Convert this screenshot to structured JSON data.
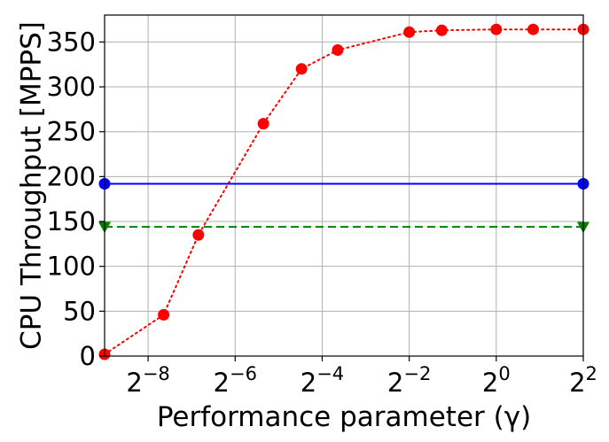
{
  "chart_data": {
    "type": "line",
    "xlabel": "Performance parameter (γ)",
    "ylabel": "CPU Throughput [MPPS]",
    "x_scale": "log2",
    "xlim": [
      0.001953125,
      4
    ],
    "ylim": [
      0,
      380
    ],
    "grid": true,
    "x_ticks": [
      {
        "value": 0.00390625,
        "base": "2",
        "exp": "−8"
      },
      {
        "value": 0.015625,
        "base": "2",
        "exp": "−6"
      },
      {
        "value": 0.0625,
        "base": "2",
        "exp": "−4"
      },
      {
        "value": 0.25,
        "base": "2",
        "exp": "−2"
      },
      {
        "value": 1,
        "base": "2",
        "exp": "0"
      },
      {
        "value": 4,
        "base": "2",
        "exp": "2"
      }
    ],
    "y_ticks": [
      0,
      50,
      100,
      150,
      200,
      250,
      300,
      350
    ],
    "series": [
      {
        "color": "#ff0000",
        "line_style": "dotted",
        "marker": "circle",
        "x": [
          0.001953125,
          0.005,
          0.0087,
          0.0245,
          0.045,
          0.08,
          0.25,
          0.42,
          1,
          1.8,
          4
        ],
        "y": [
          2,
          46,
          135,
          259,
          320,
          341,
          361,
          363,
          364,
          364,
          364
        ]
      },
      {
        "color": "#0000ff",
        "line_style": "solid",
        "marker": "circle",
        "x": [
          0.001953125,
          4
        ],
        "y": [
          192,
          192
        ]
      },
      {
        "color": "#008000",
        "line_style": "dashed",
        "marker": "triangle-down",
        "x": [
          0.001953125,
          4
        ],
        "y": [
          144,
          144
        ]
      }
    ]
  }
}
